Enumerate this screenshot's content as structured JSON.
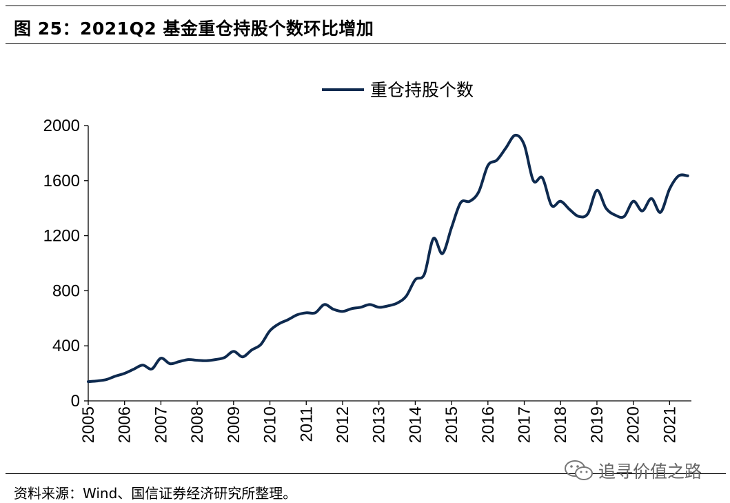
{
  "figure": {
    "title": "图 25：2021Q2 基金重仓持股个数环比增加",
    "source": "资料来源：Wind、国信证券经济研究所整理。",
    "watermark": "追寻价值之路",
    "watermark_icon": "wechat-icon"
  },
  "colors": {
    "line": "#0e2a4f",
    "axis": "#000000",
    "watermark": "#666666"
  },
  "chart_data": {
    "type": "line",
    "title": "",
    "xlabel": "",
    "ylabel": "",
    "legend": "top-center",
    "grid": false,
    "xlim": [
      2005.0,
      2021.6
    ],
    "ylim": [
      0,
      2000
    ],
    "yticks": [
      0,
      400,
      800,
      1200,
      1600,
      2000
    ],
    "xticks": [
      "2005",
      "2006",
      "2007",
      "2008",
      "2009",
      "2010",
      "2011",
      "2012",
      "2013",
      "2014",
      "2015",
      "2016",
      "2017",
      "2018",
      "2019",
      "2020",
      "2021"
    ],
    "series": [
      {
        "name": "重仓持股个数",
        "x": [
          2005.0,
          2005.25,
          2005.5,
          2005.75,
          2006.0,
          2006.25,
          2006.5,
          2006.75,
          2007.0,
          2007.25,
          2007.5,
          2007.75,
          2008.0,
          2008.25,
          2008.5,
          2008.75,
          2009.0,
          2009.25,
          2009.5,
          2009.75,
          2010.0,
          2010.25,
          2010.5,
          2010.75,
          2011.0,
          2011.25,
          2011.5,
          2011.75,
          2012.0,
          2012.25,
          2012.5,
          2012.75,
          2013.0,
          2013.25,
          2013.5,
          2013.75,
          2014.0,
          2014.25,
          2014.5,
          2014.75,
          2015.0,
          2015.25,
          2015.5,
          2015.75,
          2016.0,
          2016.25,
          2016.5,
          2016.75,
          2017.0,
          2017.25,
          2017.5,
          2017.75,
          2018.0,
          2018.25,
          2018.5,
          2018.75,
          2019.0,
          2019.25,
          2019.5,
          2019.75,
          2020.0,
          2020.25,
          2020.5,
          2020.75,
          2021.0,
          2021.25,
          2021.5
        ],
        "values": [
          140,
          145,
          155,
          180,
          200,
          230,
          260,
          232,
          310,
          270,
          285,
          300,
          295,
          292,
          300,
          315,
          360,
          320,
          370,
          410,
          510,
          560,
          590,
          625,
          640,
          640,
          700,
          665,
          650,
          670,
          680,
          700,
          680,
          690,
          710,
          760,
          880,
          920,
          1180,
          1070,
          1260,
          1440,
          1450,
          1520,
          1710,
          1750,
          1840,
          1930,
          1860,
          1600,
          1620,
          1420,
          1450,
          1390,
          1340,
          1360,
          1530,
          1400,
          1350,
          1340,
          1450,
          1380,
          1470,
          1370,
          1540,
          1635,
          1635
        ]
      }
    ]
  }
}
